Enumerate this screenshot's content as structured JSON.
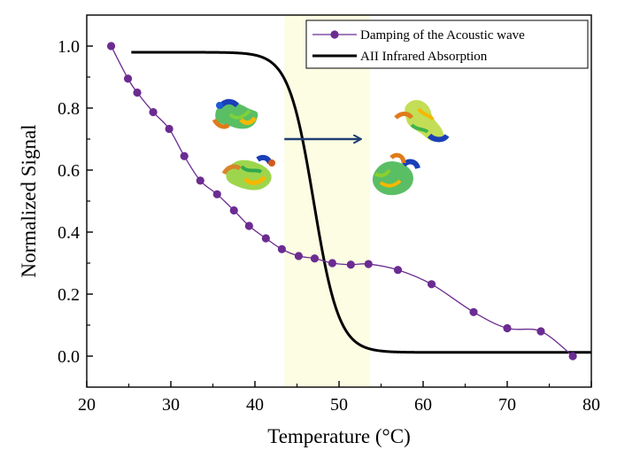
{
  "chart_data": {
    "type": "line",
    "xlabel": "Temperature (°C)",
    "ylabel": "Normalized Signal",
    "xlim": [
      20,
      80
    ],
    "ylim": [
      -0.1,
      1.1
    ],
    "x_ticks": [
      "20",
      "30",
      "40",
      "50",
      "60",
      "70",
      "80"
    ],
    "y_ticks": [
      "0.0",
      "0.2",
      "0.4",
      "0.6",
      "0.8",
      "1.0"
    ],
    "x_tick_values": [
      20,
      30,
      40,
      50,
      60,
      70,
      80
    ],
    "y_tick_values": [
      0.0,
      0.2,
      0.4,
      0.6,
      0.8,
      1.0
    ],
    "highlight_band": {
      "x_range": [
        43.5,
        53.7
      ],
      "color": "#fdfde3"
    },
    "legend_position": "top-right",
    "grid": false,
    "series": [
      {
        "name": "Damping of the Acoustic wave",
        "style": "line-with-markers",
        "color": "#6b2c91",
        "x": [
          22.9,
          24.9,
          26.0,
          27.9,
          29.8,
          31.6,
          33.5,
          35.5,
          37.5,
          39.3,
          41.3,
          43.2,
          45.2,
          47.1,
          49.2,
          51.4,
          53.5,
          57.0,
          61.0,
          66.0,
          70.0,
          74.0,
          77.8
        ],
        "y": [
          1.0,
          0.895,
          0.85,
          0.787,
          0.733,
          0.645,
          0.566,
          0.522,
          0.47,
          0.42,
          0.38,
          0.345,
          0.323,
          0.315,
          0.3,
          0.295,
          0.297,
          0.278,
          0.232,
          0.142,
          0.09,
          0.08,
          0.0
        ]
      },
      {
        "name": "AII Infrared Absorption",
        "style": "line",
        "color": "#000000",
        "function": "sigmoid",
        "x_start": 25.3,
        "x_end": 80,
        "top": 0.98,
        "bottom": 0.012,
        "midpoint": 47.0,
        "width": 1.5
      }
    ],
    "annotations": [
      {
        "type": "arrow",
        "from": [
          43.5,
          0.7
        ],
        "to": [
          52.5,
          0.7
        ],
        "color": "#1f3e74"
      }
    ],
    "images": [
      {
        "icon": "protein-structure-icon",
        "state": "folded",
        "count": 2
      },
      {
        "icon": "protein-structure-icon",
        "state": "unfolded",
        "count": 2
      }
    ]
  }
}
